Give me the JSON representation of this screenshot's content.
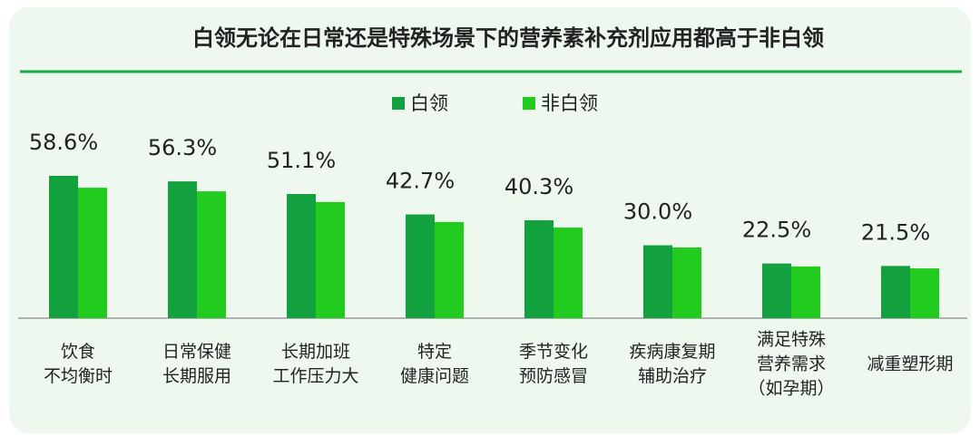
{
  "chart_data": {
    "type": "bar",
    "title": "白领无论在日常还是特殊场景下的营养素补充剂应用都高于非白领",
    "categories": [
      [
        "饮食",
        "不均衡时"
      ],
      [
        "日常保健",
        "长期服用"
      ],
      [
        "长期加班",
        "工作压力大"
      ],
      [
        "特定",
        "健康问题"
      ],
      [
        "季节变化",
        "预防感冒"
      ],
      [
        "疾病康复期",
        "辅助治疗"
      ],
      [
        "满足特殊",
        "营养需求",
        "（如孕期）"
      ],
      [
        "减重塑形期"
      ]
    ],
    "series": [
      {
        "name": "白领",
        "color": "#13a03e",
        "values": [
          58.6,
          56.3,
          51.1,
          42.7,
          40.3,
          30.0,
          22.5,
          21.5
        ],
        "value_labels": [
          "58.6%",
          "56.3%",
          "51.1%",
          "42.7%",
          "40.3%",
          "30.0%",
          "22.5%",
          "21.5%"
        ]
      },
      {
        "name": "非白领",
        "color": "#22cc1e",
        "values": [
          53.7,
          52.2,
          47.8,
          39.6,
          37.3,
          29.1,
          21.3,
          20.5
        ]
      }
    ]
  }
}
